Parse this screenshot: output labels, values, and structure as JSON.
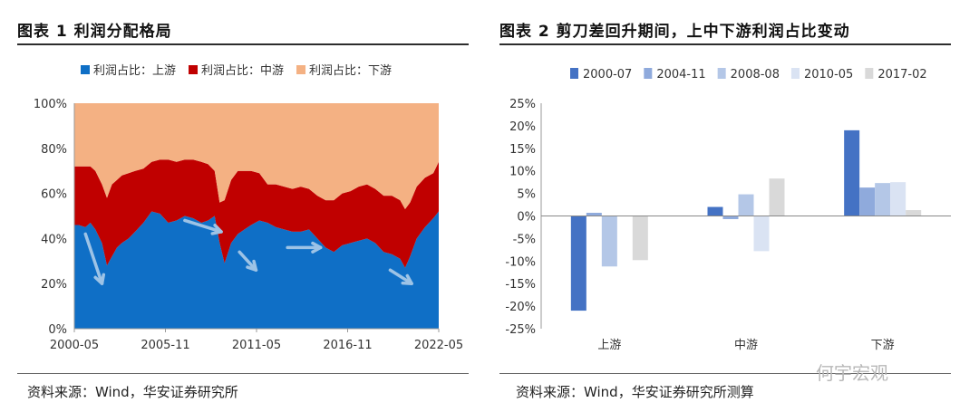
{
  "left": {
    "title": "图表 1  利润分配格局",
    "source": "资料来源：Wind，华安证券研究所"
  },
  "right": {
    "title": "图表 2  剪刀差回升期间，上中下游利润占比变动",
    "source": "资料来源：Wind，华安证券研究所测算"
  },
  "watermark": "何宇宏观",
  "chart_data": [
    {
      "type": "area",
      "stacked": true,
      "legend_position": "top",
      "x_ticks": [
        "2000-05",
        "2005-11",
        "2011-05",
        "2016-11",
        "2022-05"
      ],
      "ylim": [
        0,
        100
      ],
      "y_ticks": [
        "0%",
        "20%",
        "40%",
        "60%",
        "80%",
        "100%"
      ],
      "x_start": 2000.33,
      "x_end": 2022.33,
      "series": [
        {
          "name": "利润占比：上游",
          "color": "#0f6fc6",
          "x": [
            2000.33,
            2000.6,
            2001.0,
            2001.3,
            2001.6,
            2002.0,
            2002.3,
            2002.6,
            2002.9,
            2003.2,
            2003.6,
            2004.0,
            2004.5,
            2005.0,
            2005.5,
            2006.0,
            2006.5,
            2007.0,
            2007.5,
            2008.0,
            2008.4,
            2008.8,
            2009.1,
            2009.4,
            2009.8,
            2010.2,
            2010.6,
            2011.0,
            2011.5,
            2012.0,
            2012.5,
            2013.0,
            2013.5,
            2014.0,
            2014.5,
            2015.0,
            2015.5,
            2016.0,
            2016.5,
            2017.0,
            2017.5,
            2018.0,
            2018.5,
            2019.0,
            2019.5,
            2020.0,
            2020.3,
            2020.6,
            2021.0,
            2021.5,
            2022.0,
            2022.33
          ],
          "values": [
            46,
            46,
            45,
            47,
            44,
            38,
            28,
            32,
            36,
            38,
            40,
            43,
            47,
            52,
            51,
            47,
            48,
            50,
            49,
            47,
            48,
            50,
            38,
            29,
            38,
            42,
            44,
            46,
            48,
            47,
            45,
            44,
            43,
            43,
            44,
            40,
            36,
            34,
            37,
            38,
            39,
            40,
            38,
            34,
            33,
            31,
            27,
            32,
            40,
            45,
            49,
            52
          ]
        },
        {
          "name": "利润占比：中游",
          "color": "#c00000",
          "x": [
            2000.33,
            2000.6,
            2001.0,
            2001.3,
            2001.6,
            2002.0,
            2002.3,
            2002.6,
            2002.9,
            2003.2,
            2003.6,
            2004.0,
            2004.5,
            2005.0,
            2005.5,
            2006.0,
            2006.5,
            2007.0,
            2007.5,
            2008.0,
            2008.4,
            2008.8,
            2009.1,
            2009.4,
            2009.8,
            2010.2,
            2010.6,
            2011.0,
            2011.5,
            2012.0,
            2012.5,
            2013.0,
            2013.5,
            2014.0,
            2014.5,
            2015.0,
            2015.5,
            2016.0,
            2016.5,
            2017.0,
            2017.5,
            2018.0,
            2018.5,
            2019.0,
            2019.5,
            2020.0,
            2020.3,
            2020.6,
            2021.0,
            2021.5,
            2022.0,
            2022.33
          ],
          "values": [
            26,
            26,
            27,
            25,
            26,
            26,
            30,
            32,
            30,
            30,
            29,
            27,
            24,
            22,
            24,
            28,
            26,
            25,
            26,
            27,
            25,
            20,
            18,
            28,
            28,
            28,
            26,
            24,
            21,
            17,
            19,
            19,
            19,
            20,
            18,
            19,
            21,
            23,
            23,
            23,
            24,
            24,
            24,
            25,
            26,
            26,
            26,
            24,
            23,
            22,
            20,
            22
          ]
        },
        {
          "name": "利润占比：下游",
          "color": "#f4b183",
          "x": [
            2000.33,
            2000.6,
            2001.0,
            2001.3,
            2001.6,
            2002.0,
            2002.3,
            2002.6,
            2002.9,
            2003.2,
            2003.6,
            2004.0,
            2004.5,
            2005.0,
            2005.5,
            2006.0,
            2006.5,
            2007.0,
            2007.5,
            2008.0,
            2008.4,
            2008.8,
            2009.1,
            2009.4,
            2009.8,
            2010.2,
            2010.6,
            2011.0,
            2011.5,
            2012.0,
            2012.5,
            2013.0,
            2013.5,
            2014.0,
            2014.5,
            2015.0,
            2015.5,
            2016.0,
            2016.5,
            2017.0,
            2017.5,
            2018.0,
            2018.5,
            2019.0,
            2019.5,
            2020.0,
            2020.3,
            2020.6,
            2021.0,
            2021.5,
            2022.0,
            2022.33
          ],
          "values": [
            28,
            28,
            28,
            28,
            30,
            36,
            42,
            36,
            34,
            32,
            31,
            30,
            29,
            26,
            25,
            25,
            26,
            25,
            25,
            26,
            27,
            30,
            44,
            43,
            34,
            30,
            30,
            30,
            31,
            36,
            36,
            37,
            38,
            37,
            38,
            41,
            43,
            43,
            40,
            39,
            37,
            36,
            38,
            41,
            41,
            43,
            47,
            44,
            37,
            33,
            31,
            26
          ]
        }
      ]
    },
    {
      "type": "bar",
      "legend_position": "top",
      "categories": [
        "上游",
        "中游",
        "下游"
      ],
      "ylim": [
        -25,
        25
      ],
      "y_ticks": [
        "-25%",
        "-20%",
        "-15%",
        "-10%",
        "-5%",
        "0%",
        "5%",
        "10%",
        "15%",
        "20%",
        "25%"
      ],
      "series": [
        {
          "name": "2000-07",
          "color": "#4472c4",
          "values": [
            -21,
            2,
            19
          ]
        },
        {
          "name": "2004-11",
          "color": "#8faadc",
          "values": [
            0.7,
            -0.7,
            6.3
          ]
        },
        {
          "name": "2008-08",
          "color": "#b4c7e7",
          "values": [
            -11.2,
            4.8,
            7.3
          ]
        },
        {
          "name": "2010-05",
          "color": "#dae3f3",
          "values": [
            0,
            -7.8,
            7.5
          ]
        },
        {
          "name": "2017-02",
          "color": "#d9d9d9",
          "values": [
            -9.8,
            8.3,
            1.3
          ]
        }
      ]
    }
  ]
}
